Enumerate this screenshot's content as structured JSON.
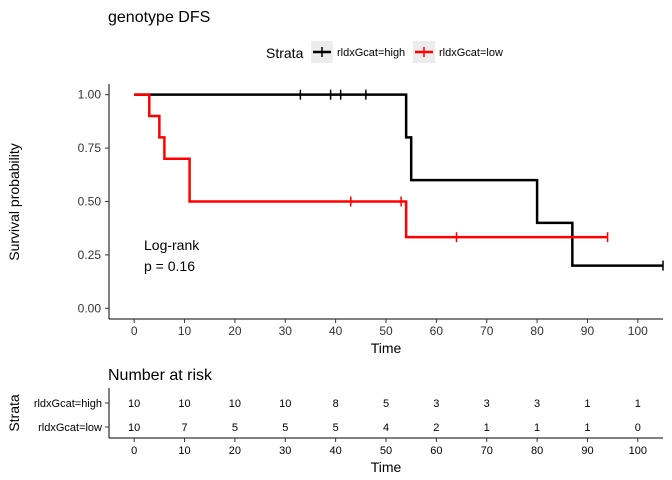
{
  "chart_data": [
    {
      "type": "line",
      "title": "genotype DFS",
      "xlabel": "Time",
      "ylabel": "Survival probability",
      "xlim": [
        -5,
        105
      ],
      "ylim": [
        -0.05,
        1.05
      ],
      "xticks": [
        0,
        10,
        20,
        30,
        40,
        50,
        60,
        70,
        80,
        90,
        100
      ],
      "yticks": [
        "0.00",
        "0.25",
        "0.50",
        "0.75",
        "1.00"
      ],
      "yticks_values": [
        0,
        0.25,
        0.5,
        0.75,
        1.0
      ],
      "grid": false,
      "legend": {
        "title": "Strata",
        "placement": "top",
        "entries": [
          "rldxGcat=high",
          "rldxGcat=low"
        ]
      },
      "annotation": [
        "Log-rank",
        "p = 0.16"
      ],
      "series": [
        {
          "name": "rldxGcat=high",
          "color": "#000000",
          "steps": [
            [
              0,
              1.0
            ],
            [
              54,
              0.8
            ],
            [
              55,
              0.6
            ],
            [
              80,
              0.4
            ],
            [
              87,
              0.2
            ],
            [
              105,
              0.2
            ]
          ],
          "censor": [
            [
              33,
              1.0
            ],
            [
              39,
              1.0
            ],
            [
              41,
              1.0
            ],
            [
              46,
              1.0
            ],
            [
              105,
              0.2
            ]
          ]
        },
        {
          "name": "rldxGcat=low",
          "color": "#ff0000",
          "steps": [
            [
              0,
              1.0
            ],
            [
              3,
              0.9
            ],
            [
              5,
              0.8
            ],
            [
              6,
              0.7
            ],
            [
              11,
              0.5
            ],
            [
              54,
              0.333
            ],
            [
              94,
              0.333
            ]
          ],
          "censor": [
            [
              43,
              0.5
            ],
            [
              53,
              0.5
            ],
            [
              64,
              0.333
            ],
            [
              94,
              0.333
            ]
          ]
        }
      ]
    },
    {
      "type": "table",
      "title": "Number at risk",
      "xlabel": "Time",
      "ylabel": "Strata",
      "times": [
        0,
        10,
        20,
        30,
        40,
        50,
        60,
        70,
        80,
        90,
        100
      ],
      "rows": [
        {
          "label": "rldxGcat=high",
          "color": "#000000",
          "values": [
            10,
            10,
            10,
            10,
            8,
            5,
            3,
            3,
            3,
            1,
            1
          ]
        },
        {
          "label": "rldxGcat=low",
          "color": "#ff0000",
          "values": [
            10,
            7,
            5,
            5,
            5,
            4,
            2,
            1,
            1,
            1,
            0
          ]
        }
      ]
    }
  ]
}
